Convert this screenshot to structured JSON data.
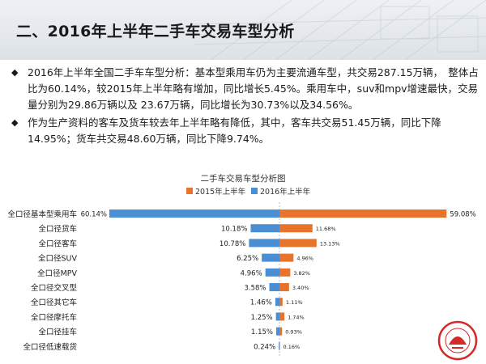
{
  "header": {
    "title": "二、2016年上半年二手车交易车型分析"
  },
  "bullets": [
    "2016年上半年全国二手车车型分析：基本型乘用车仍为主要流通车型，共交易287.15万辆，　整体占比为60.14%，较2015年上半年略有增加，同比增长5.45%。乘用车中，suv和mpv增速最快，交易量分别为29.86万辆以及 23.67万辆，同比增长为30.73%以及34.56%。",
    "作为生产资料的客车及货车较去年上半年略有降低，其中，客车共交易51.45万辆，同比下降14.95%；货车共交易48.60万辆，同比下降9.74%。"
  ],
  "chart_data": {
    "type": "bar",
    "title": "二手车交易车型分析图",
    "categories": [
      "全口径基本型乘用车",
      "全口径货车",
      "全口径客车",
      "全口径SUV",
      "全口径MPV",
      "全口径交叉型",
      "全口径其它车",
      "全口径摩托车",
      "全口径挂车",
      "全口径低速载货"
    ],
    "series": [
      {
        "name": "2015年上半年",
        "values": [
          59.08,
          11.68,
          13.13,
          4.96,
          3.82,
          3.4,
          1.11,
          1.74,
          0.93,
          0.16
        ],
        "labels": [
          "59.08%",
          "11.68%",
          "13.13%",
          "4.96%",
          "3.82%",
          "3.40%",
          "1.11%",
          "1.74%",
          "0.93%",
          "0.16%"
        ],
        "color": "#e8742c",
        "side": "right"
      },
      {
        "name": "2016年上半年",
        "values": [
          60.14,
          10.18,
          10.78,
          6.25,
          4.96,
          3.58,
          1.46,
          1.25,
          1.15,
          0.24
        ],
        "labels": [
          "60.14%",
          "10.18%",
          "10.78%",
          "6.25%",
          "4.96%",
          "3.58%",
          "1.46%",
          "1.25%",
          "1.15%",
          "0.24%"
        ],
        "color": "#4a8fd4",
        "side": "left"
      }
    ],
    "legend_position": "top-center"
  },
  "colors": {
    "accent_orange": "#e8742c",
    "accent_blue": "#4a8fd4",
    "seal_red": "#d42a2a"
  }
}
